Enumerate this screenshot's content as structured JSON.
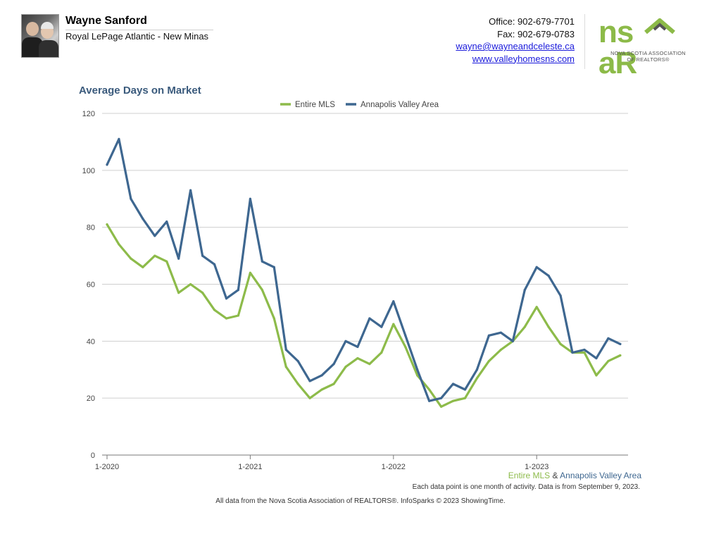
{
  "agent": {
    "name": "Wayne Sanford",
    "company": "Royal LePage Atlantic - New Minas"
  },
  "contact": {
    "office": "Office: 902-679-7701",
    "fax": "Fax: 902-679-0783",
    "email": "wayne@wayneandceleste.ca",
    "website": "www.valleyhomesns.com"
  },
  "logo": {
    "text_left": "ns",
    "text_right": "aR",
    "sub_line1": "NOVA SCOTIA ASSOCIATION",
    "sub_line2": "OF REALTORS®",
    "color": "#8cba48",
    "accent": "#555555"
  },
  "chart_data": {
    "type": "line",
    "title": "Average Days on Market",
    "xlabel": "",
    "ylabel": "",
    "ylim": [
      0,
      120
    ],
    "yticks": [
      0,
      20,
      40,
      60,
      80,
      100,
      120
    ],
    "xtick_labels": [
      "1-2020",
      "1-2021",
      "1-2022",
      "1-2023"
    ],
    "xtick_indices": [
      0,
      12,
      24,
      36
    ],
    "grid": true,
    "legend_position": "top-center",
    "series": [
      {
        "name": "Entire MLS",
        "color": "#8dbb4a",
        "values": [
          81,
          74,
          69,
          66,
          70,
          68,
          57,
          60,
          57,
          51,
          48,
          49,
          64,
          58,
          48,
          31,
          25,
          20,
          23,
          25,
          31,
          34,
          32,
          36,
          46,
          38,
          28,
          23,
          17,
          19,
          20,
          27,
          33,
          37,
          40,
          45,
          52,
          45,
          39,
          36,
          36,
          28,
          33,
          35
        ]
      },
      {
        "name": "Annapolis Valley Area",
        "color": "#3e6790",
        "values": [
          102,
          111,
          90,
          83,
          77,
          82,
          69,
          93,
          70,
          67,
          55,
          58,
          90,
          68,
          66,
          37,
          33,
          26,
          28,
          32,
          40,
          38,
          48,
          45,
          54,
          42,
          30,
          19,
          20,
          25,
          23,
          30,
          42,
          43,
          40,
          58,
          66,
          63,
          56,
          36,
          37,
          34,
          41,
          39
        ]
      }
    ]
  },
  "area_label": {
    "part1": "Entire MLS",
    "amp": " & ",
    "part2": "Annapolis Valley Area"
  },
  "footnotes": {
    "note1": "Each data point is one month of activity. Data is from September 9, 2023.",
    "note2": "All data from the Nova Scotia Association of REALTORS®. InfoSparks © 2023 ShowingTime."
  }
}
